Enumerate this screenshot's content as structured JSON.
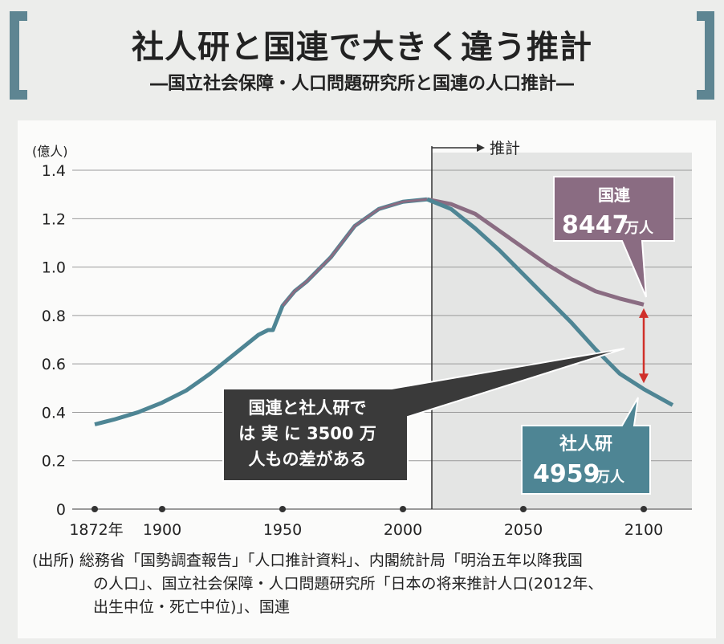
{
  "title": "社人研と国連で大きく違う推計",
  "subtitle": "―国立社会保障・人口問題研究所と国連の人口推計―",
  "chart_data": {
    "type": "line",
    "title": "社人研と国連で大きく違う推計",
    "ylabel": "(億人)",
    "ylim": [
      0,
      1.4
    ],
    "yticks": [
      "0",
      "0.2",
      "0.4",
      "0.6",
      "0.8",
      "1.0",
      "1.2",
      "1.4"
    ],
    "xlim": [
      1872,
      2115
    ],
    "xticks": [
      {
        "v": 1872,
        "label": "1872年"
      },
      {
        "v": 1900,
        "label": "1900"
      },
      {
        "v": 1950,
        "label": "1950"
      },
      {
        "v": 2000,
        "label": "2000"
      },
      {
        "v": 2050,
        "label": "2050"
      },
      {
        "v": 2100,
        "label": "2100"
      }
    ],
    "grid": true,
    "projection_start": 2012,
    "projection_label": "推計",
    "history": {
      "x": [
        1872,
        1880,
        1890,
        1900,
        1910,
        1920,
        1930,
        1940,
        1944,
        1946,
        1950,
        1955,
        1960,
        1970,
        1980,
        1990,
        2000,
        2010
      ],
      "y": [
        0.35,
        0.37,
        0.4,
        0.44,
        0.49,
        0.56,
        0.64,
        0.72,
        0.74,
        0.74,
        0.84,
        0.9,
        0.94,
        1.04,
        1.17,
        1.24,
        1.27,
        1.28
      ]
    },
    "series": [
      {
        "name": "国連",
        "color": "#8a6c82",
        "x": [
          2010,
          2020,
          2030,
          2040,
          2050,
          2060,
          2070,
          2080,
          2090,
          2100
        ],
        "y": [
          1.28,
          1.26,
          1.22,
          1.15,
          1.08,
          1.01,
          0.95,
          0.9,
          0.87,
          0.845
        ]
      },
      {
        "name": "社人研",
        "color": "#4e8594",
        "x": [
          2010,
          2020,
          2030,
          2040,
          2050,
          2060,
          2070,
          2080,
          2090,
          2100,
          2112
        ],
        "y": [
          1.28,
          1.24,
          1.16,
          1.07,
          0.97,
          0.87,
          0.77,
          0.66,
          0.56,
          0.496,
          0.43
        ]
      }
    ],
    "annotations": {
      "un": {
        "name": "国連",
        "value": "8447",
        "unit": "万人"
      },
      "ipss": {
        "name": "社人研",
        "value": "4959",
        "unit": "万人"
      },
      "gap_line1": "国連と社人研で",
      "gap_line2": "は 実 に 3500 万",
      "gap_line3": "人もの差がある"
    },
    "colors": {
      "un": "#8a6c82",
      "ipss": "#4e8594",
      "history": "#4e8594",
      "arrow": "#d0302a",
      "projection_bg": "#e4e5e4"
    }
  },
  "source": {
    "line1": "(出所) 総務省「国勢調査報告」「人口推計資料」、内閣統計局「明治五年以降我国",
    "line2": "の人口」、国立社会保障・人口問題研究所「日本の将来推計人口(2012年、",
    "line3": "出生中位・死亡中位)」、国連"
  }
}
